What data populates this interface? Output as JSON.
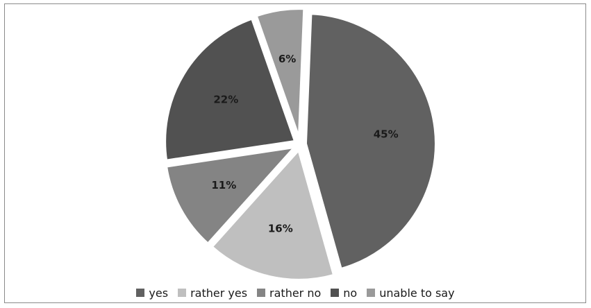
{
  "chart_data": {
    "type": "pie",
    "categories": [
      "yes",
      "rather yes",
      "rather no",
      "no",
      "unable to say"
    ],
    "values": [
      45,
      16,
      11,
      22,
      6
    ],
    "labels": [
      "45%",
      "16%",
      "11%",
      "22%",
      "6%"
    ],
    "colors": [
      "#616161",
      "#bfbfbf",
      "#848484",
      "#515151",
      "#9a9a9a"
    ],
    "exploded": true,
    "legend_position": "bottom"
  }
}
